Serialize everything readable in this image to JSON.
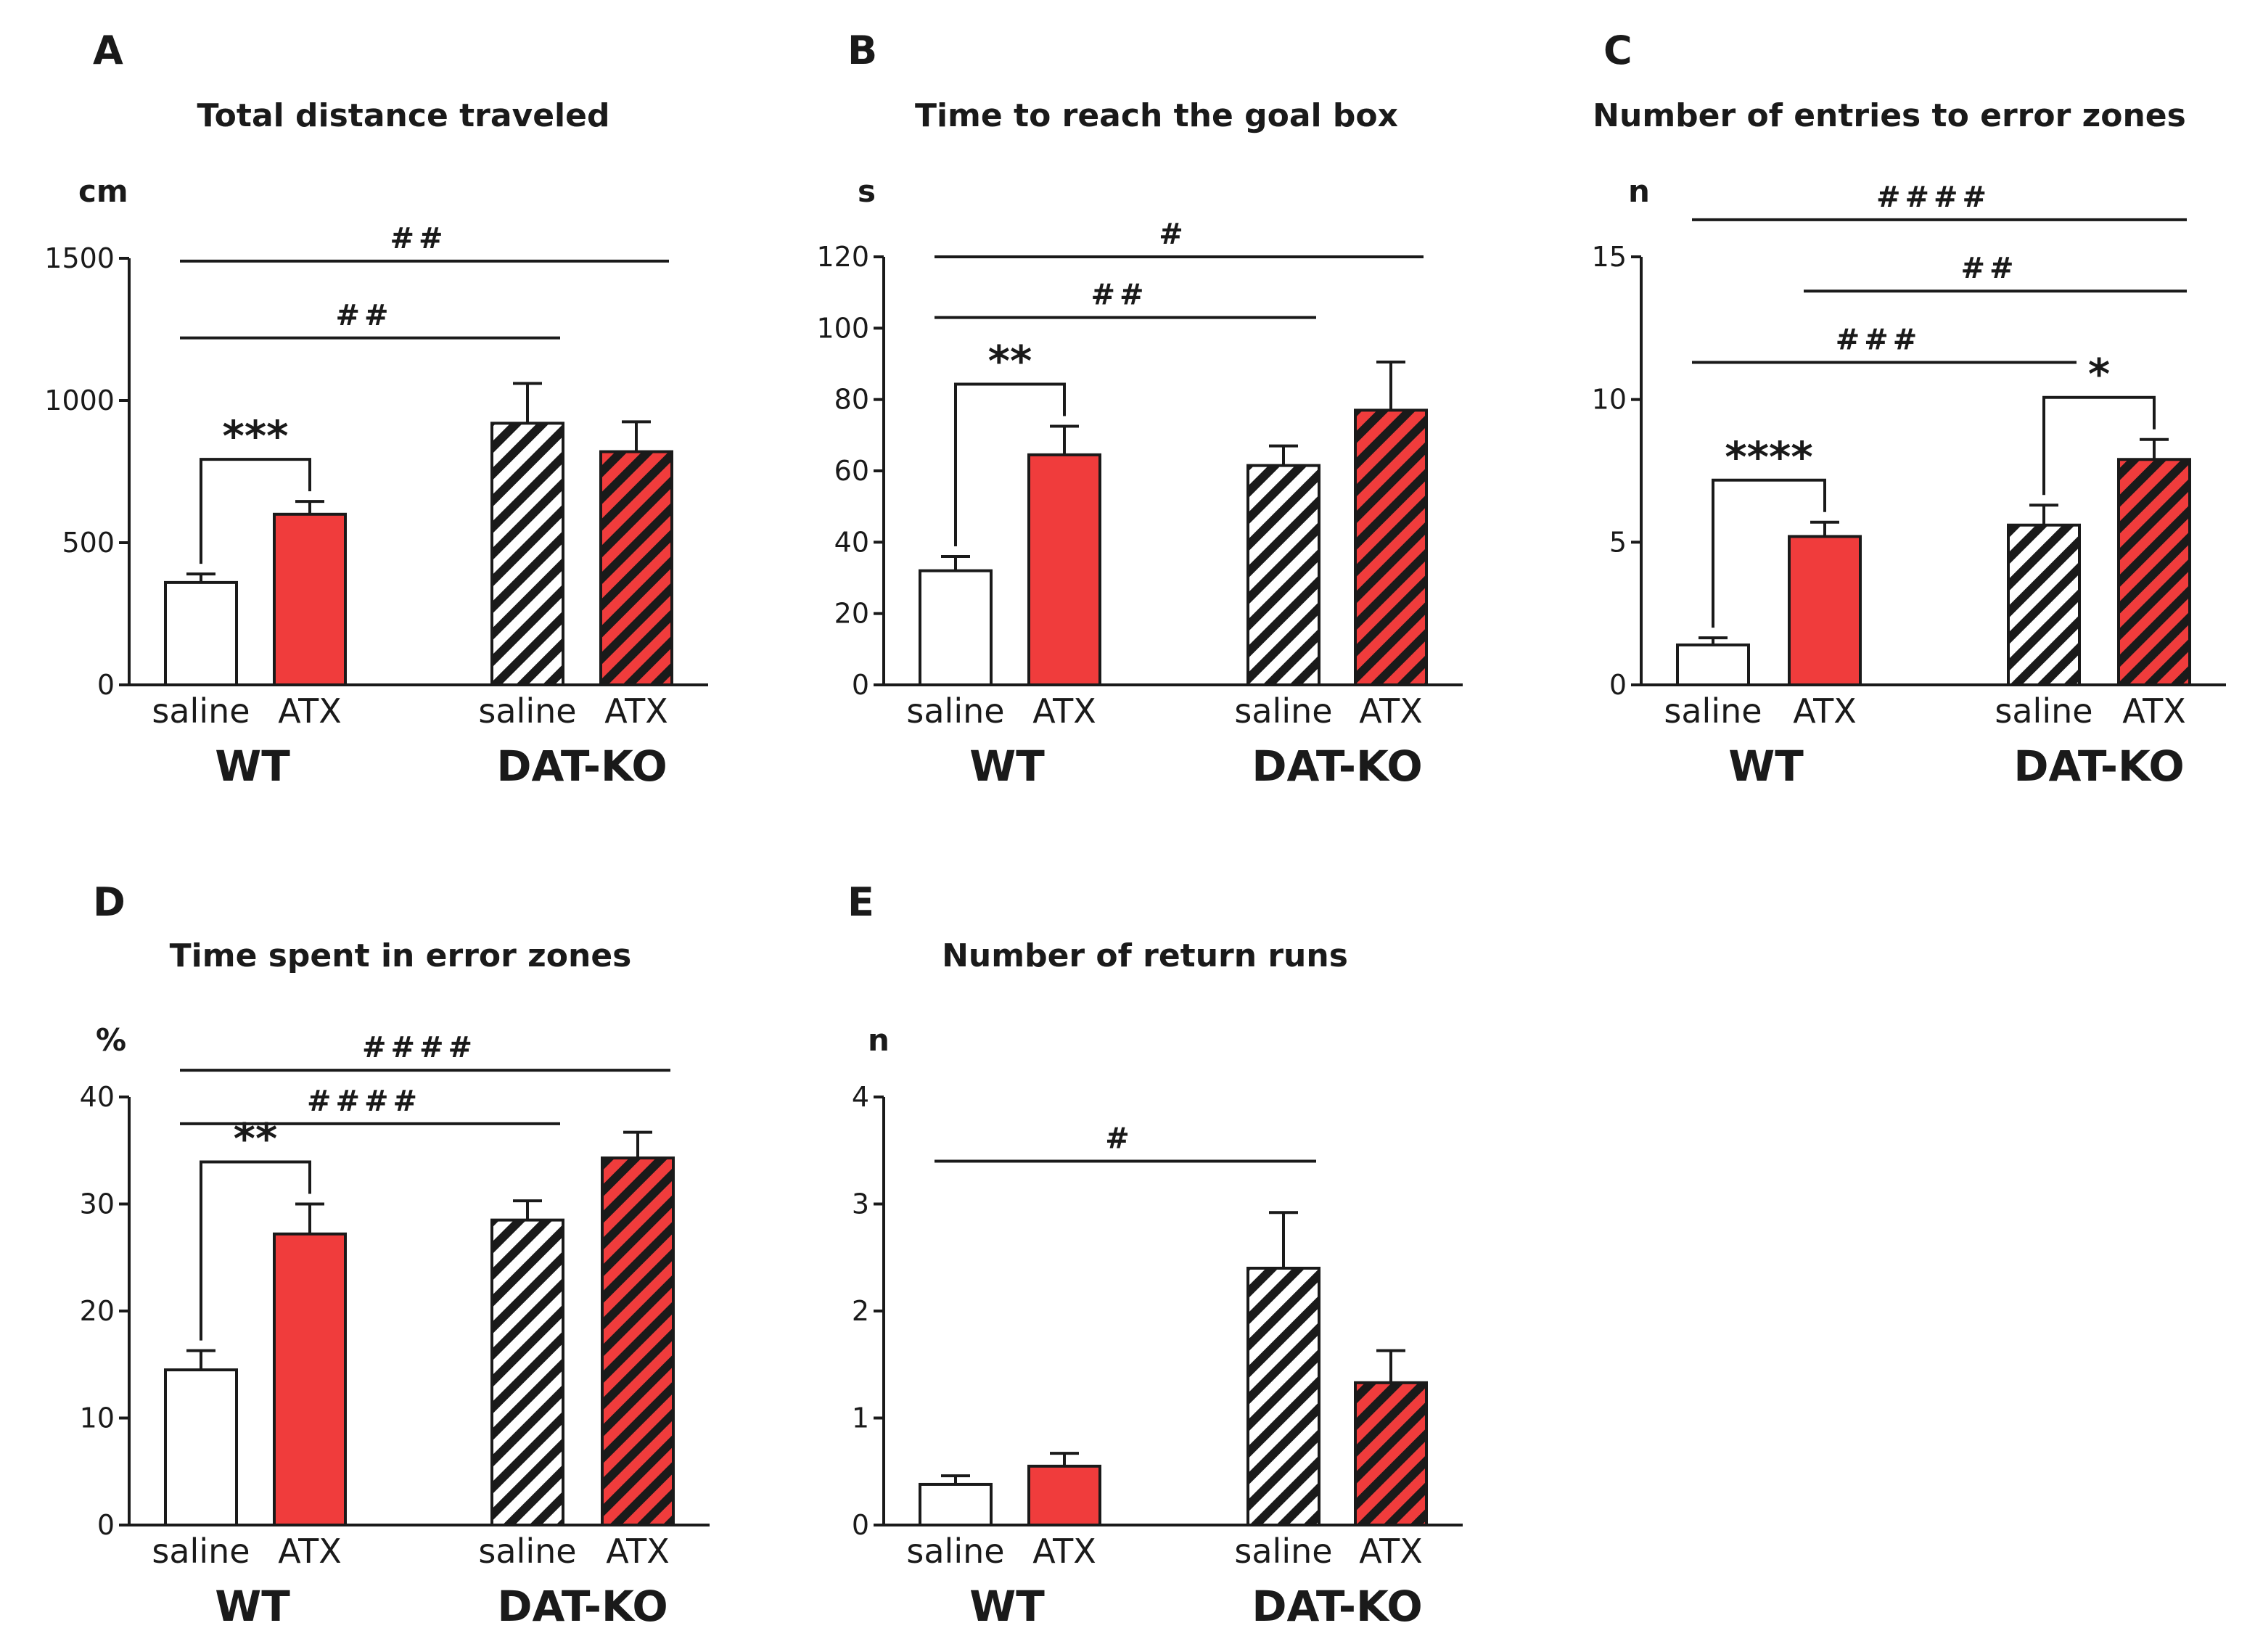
{
  "colors": {
    "white_fill": "#ffffff",
    "red": "#f03c3c",
    "black": "#1a1a1a",
    "hatch_light": "#ffffff"
  },
  "labels": {
    "conditions": [
      "saline",
      "ATX",
      "saline",
      "ATX"
    ],
    "groups": [
      "WT",
      "DAT-KO"
    ]
  },
  "chart_data": [
    {
      "id": "A",
      "letter": "A",
      "type": "bar",
      "title": "Total distance traveled",
      "ylabel": "cm",
      "ylim": [
        0,
        1500
      ],
      "yticks": [
        0,
        500,
        1000,
        1500
      ],
      "categories": [
        "WT saline",
        "WT ATX",
        "DAT-KO saline",
        "DAT-KO ATX"
      ],
      "values": [
        360,
        600,
        920,
        820
      ],
      "errors": [
        30,
        45,
        140,
        105
      ],
      "brackets": [
        {
          "from": 0,
          "to": 1,
          "label": "***"
        }
      ],
      "lines": [
        {
          "from": 0,
          "to": 3,
          "label": "##",
          "y": 1490
        },
        {
          "from": 0,
          "to": 2,
          "label": "##",
          "y": 1220
        }
      ]
    },
    {
      "id": "B",
      "letter": "B",
      "type": "bar",
      "title": "Time to reach the goal box",
      "ylabel": "s",
      "ylim": [
        0,
        120
      ],
      "yticks": [
        0,
        20,
        40,
        60,
        80,
        100,
        120
      ],
      "categories": [
        "WT saline",
        "WT ATX",
        "DAT-KO saline",
        "DAT-KO ATX"
      ],
      "values": [
        32,
        64.5,
        61.5,
        77
      ],
      "errors": [
        4,
        8,
        5.5,
        13.5
      ],
      "brackets": [
        {
          "from": 0,
          "to": 1,
          "label": "**"
        }
      ],
      "lines": [
        {
          "from": 0,
          "to": 3,
          "label": "#",
          "y": 120
        },
        {
          "from": 0,
          "to": 2,
          "label": "##",
          "y": 103
        }
      ]
    },
    {
      "id": "C",
      "letter": "C",
      "type": "bar",
      "title": "Number of entries to error zones",
      "ylabel": "n",
      "ylim": [
        0,
        15
      ],
      "yticks": [
        0,
        5,
        10,
        15
      ],
      "categories": [
        "WT saline",
        "WT ATX",
        "DAT-KO saline",
        "DAT-KO ATX"
      ],
      "values": [
        1.4,
        5.2,
        5.6,
        7.9
      ],
      "errors": [
        0.25,
        0.5,
        0.7,
        0.7
      ],
      "brackets": [
        {
          "from": 0,
          "to": 1,
          "label": "****"
        },
        {
          "from": 2,
          "to": 3,
          "label": "*"
        }
      ],
      "lines": [
        {
          "from": 0,
          "to": 3,
          "label": "####",
          "y": 16.3
        },
        {
          "from": 1,
          "to": 3,
          "label": "##",
          "y": 13.8
        },
        {
          "from": 0,
          "to": 2,
          "label": "###",
          "y": 11.3
        }
      ]
    },
    {
      "id": "D",
      "letter": "D",
      "type": "bar",
      "title": "Time spent in error zones",
      "ylabel": "%",
      "ylim": [
        0,
        40
      ],
      "yticks": [
        0,
        10,
        20,
        30,
        40
      ],
      "categories": [
        "WT saline",
        "WT ATX",
        "DAT-KO saline",
        "DAT-KO ATX"
      ],
      "values": [
        14.5,
        27.2,
        28.5,
        34.3
      ],
      "errors": [
        1.8,
        2.8,
        1.8,
        2.4
      ],
      "brackets": [
        {
          "from": 0,
          "to": 1,
          "label": "**"
        }
      ],
      "lines": [
        {
          "from": 0,
          "to": 3,
          "label": "####",
          "y": 42.5
        },
        {
          "from": 0,
          "to": 2,
          "label": "####",
          "y": 37.5
        }
      ]
    },
    {
      "id": "E",
      "letter": "E",
      "type": "bar",
      "title": "Number of return runs",
      "ylabel": "n",
      "ylim": [
        0,
        4
      ],
      "yticks": [
        0,
        1,
        2,
        3,
        4
      ],
      "categories": [
        "WT saline",
        "WT ATX",
        "DAT-KO saline",
        "DAT-KO ATX"
      ],
      "values": [
        0.38,
        0.55,
        2.4,
        1.33
      ],
      "errors": [
        0.08,
        0.12,
        0.52,
        0.3
      ],
      "brackets": [],
      "lines": [
        {
          "from": 0,
          "to": 2,
          "label": "#",
          "y": 3.4
        }
      ]
    }
  ]
}
